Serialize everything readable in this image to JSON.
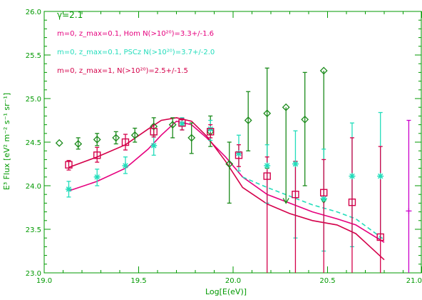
{
  "chart_data": {
    "type": "scatter",
    "title": "",
    "xlabel": "Log[E(eV)]",
    "ylabel": "E³ Flux [eV² m⁻² s⁻¹ sr⁻¹]",
    "xlim": [
      19.0,
      21.0
    ],
    "ylim": [
      23.0,
      26.0
    ],
    "x_ticks": [
      19.0,
      19.5,
      20.0,
      20.5,
      21.0
    ],
    "x_tick_labels": [
      "19.0",
      "19.5",
      "20.0",
      "20.5",
      "21.0"
    ],
    "y_ticks": [
      23.0,
      23.5,
      24.0,
      24.5,
      25.0,
      25.5,
      26.0
    ],
    "y_tick_labels": [
      "23.0",
      "23.5",
      "24.0",
      "24.5",
      "25.0",
      "25.5",
      "26.0"
    ],
    "grid": false,
    "axis_color": "#009900",
    "annotations": [
      {
        "text": "γ=2.1",
        "color": "#009900"
      },
      {
        "text": "m=0, z_max=0.1, Hom N(>10²⁰)=3.3+/-1.6",
        "color": "#e6007e"
      },
      {
        "text": "m=0, z_max=0.1, PSCz N(>10²⁰)=3.7+/-2.0",
        "color": "#22ddbb"
      },
      {
        "text": "m=0, z_max=1, N(>10²⁰)=2.5+/-1.5",
        "color": "#d4004a"
      }
    ],
    "series": [
      {
        "marker": "diamond",
        "color": "#1a8a1a",
        "points": [
          {
            "x": 19.08,
            "y": 24.49
          },
          {
            "x": 19.18,
            "y": 24.48,
            "lo": 24.42,
            "hi": 24.55
          },
          {
            "x": 19.28,
            "y": 24.53,
            "lo": 24.46,
            "hi": 24.6
          },
          {
            "x": 19.38,
            "y": 24.55,
            "lo": 24.48,
            "hi": 24.62
          },
          {
            "x": 19.48,
            "y": 24.58,
            "lo": 24.5,
            "hi": 24.66
          },
          {
            "x": 19.58,
            "y": 24.68,
            "lo": 24.58,
            "hi": 24.78
          },
          {
            "x": 19.68,
            "y": 24.7,
            "lo": 24.55,
            "hi": 24.78
          },
          {
            "x": 19.78,
            "y": 24.55,
            "lo": 24.37,
            "hi": 24.72
          },
          {
            "x": 19.88,
            "y": 24.62,
            "lo": 24.45,
            "hi": 24.8
          },
          {
            "x": 19.98,
            "y": 24.25,
            "lo": 23.8,
            "hi": 24.5
          },
          {
            "x": 20.08,
            "y": 24.75,
            "lo": 24.4,
            "hi": 25.08
          },
          {
            "x": 20.18,
            "y": 24.83,
            "lo": 24.2,
            "hi": 25.35
          },
          {
            "x": 20.28,
            "y": 24.9,
            "lo": 23.8,
            "upper_limit": true
          },
          {
            "x": 20.38,
            "y": 24.76,
            "lo": 24.0,
            "hi": 25.3
          },
          {
            "x": 20.48,
            "y": 25.32,
            "lo": 23.8,
            "upper_limit": true
          }
        ]
      },
      {
        "marker": "asterisk",
        "color": "#22ddbb",
        "points": [
          {
            "x": 19.13,
            "y": 23.96,
            "lo": 23.87,
            "hi": 24.05
          },
          {
            "x": 19.28,
            "y": 24.1,
            "lo": 24.0,
            "hi": 24.19
          },
          {
            "x": 19.43,
            "y": 24.23,
            "lo": 24.14,
            "hi": 24.33
          },
          {
            "x": 19.58,
            "y": 24.46,
            "lo": 24.35,
            "hi": 24.56
          },
          {
            "x": 19.73,
            "y": 24.71,
            "lo": 24.64,
            "hi": 24.78
          },
          {
            "x": 19.88,
            "y": 24.65,
            "lo": 24.52,
            "hi": 24.75
          },
          {
            "x": 20.03,
            "y": 24.37,
            "lo": 24.17,
            "hi": 24.58
          },
          {
            "x": 20.18,
            "y": 24.23,
            "lo": 23.8,
            "hi": 24.47
          },
          {
            "x": 20.33,
            "y": 24.25,
            "lo": 23.4,
            "hi": 24.63
          },
          {
            "x": 20.48,
            "y": 23.85,
            "lo": 23.25,
            "hi": 24.42
          },
          {
            "x": 20.63,
            "y": 24.11,
            "lo": 23.3,
            "hi": 24.72
          },
          {
            "x": 20.78,
            "y": 24.11,
            "lo": 23.4,
            "hi": 24.84
          }
        ]
      },
      {
        "marker": "square",
        "color": "#d4004a",
        "points": [
          {
            "x": 19.13,
            "y": 24.24,
            "lo": 24.18,
            "hi": 24.29
          },
          {
            "x": 19.28,
            "y": 24.35,
            "lo": 24.27,
            "hi": 24.44
          },
          {
            "x": 19.43,
            "y": 24.5,
            "lo": 24.41,
            "hi": 24.59
          },
          {
            "x": 19.58,
            "y": 24.62,
            "lo": 24.56,
            "hi": 24.7
          },
          {
            "x": 19.73,
            "y": 24.72,
            "lo": 24.64,
            "hi": 24.77
          },
          {
            "x": 19.88,
            "y": 24.62,
            "lo": 24.55,
            "hi": 24.7
          },
          {
            "x": 20.03,
            "y": 24.35,
            "lo": 24.22,
            "hi": 24.47
          },
          {
            "x": 20.18,
            "y": 24.11,
            "lo": 23.0,
            "hi": 24.33
          },
          {
            "x": 20.33,
            "y": 23.9,
            "lo": 23.0,
            "hi": 24.28
          },
          {
            "x": 20.48,
            "y": 23.92,
            "lo": 23.0,
            "hi": 24.3
          },
          {
            "x": 20.63,
            "y": 23.81,
            "lo": 23.0,
            "hi": 24.55
          },
          {
            "x": 20.78,
            "y": 23.41,
            "lo": 23.0,
            "hi": 24.45
          }
        ]
      },
      {
        "marker": "plus",
        "color": "#cc00cc",
        "points": [
          {
            "x": 20.93,
            "y": 23.71,
            "lo": 23.0,
            "hi": 24.75
          }
        ]
      },
      {
        "marker": "line",
        "line_style": "solid",
        "color": "#e6007e",
        "x": [
          19.13,
          19.28,
          19.43,
          19.55,
          19.62,
          19.7,
          19.78,
          19.86,
          19.96,
          20.05,
          20.18,
          20.3,
          20.42,
          20.55,
          20.65,
          20.8
        ],
        "y": [
          23.94,
          24.05,
          24.2,
          24.42,
          24.58,
          24.74,
          24.7,
          24.55,
          24.33,
          24.1,
          23.9,
          23.8,
          23.7,
          23.62,
          23.55,
          23.35
        ]
      },
      {
        "marker": "line",
        "line_style": "dashed",
        "color": "#22ddbb",
        "x": [
          20.05,
          20.18,
          20.3,
          20.42,
          20.55,
          20.65,
          20.8
        ],
        "y": [
          24.1,
          23.98,
          23.88,
          23.78,
          23.7,
          23.62,
          23.38
        ]
      },
      {
        "marker": "line",
        "line_style": "solid",
        "color": "#d4004a",
        "x": [
          19.13,
          19.28,
          19.43,
          19.55,
          19.62,
          19.7,
          19.78,
          19.86,
          19.96,
          20.05,
          20.18,
          20.3,
          20.42,
          20.55,
          20.65,
          20.8
        ],
        "y": [
          24.21,
          24.33,
          24.47,
          24.65,
          24.75,
          24.78,
          24.74,
          24.57,
          24.28,
          23.98,
          23.79,
          23.68,
          23.6,
          23.55,
          23.45,
          23.15
        ]
      }
    ]
  }
}
